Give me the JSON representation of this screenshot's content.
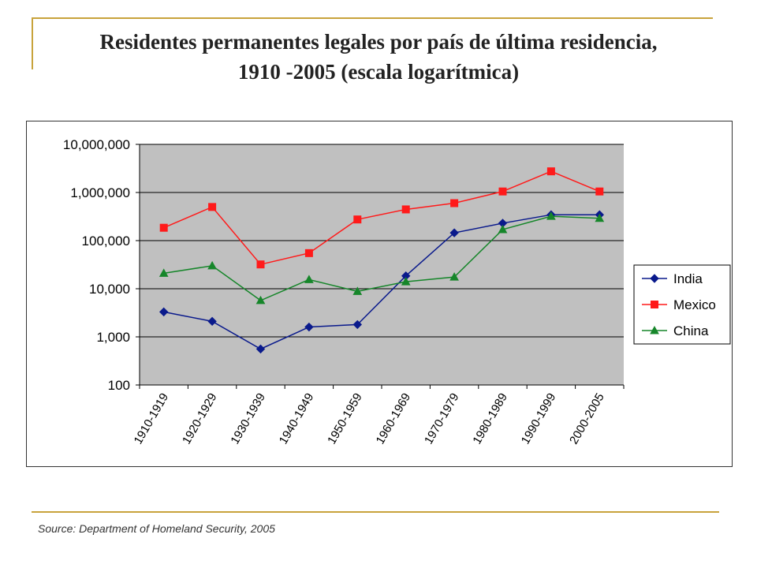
{
  "header": {
    "title_line1": "Residentes permanentes legales por país de última residencia,",
    "title_line2": "1910 -2005 (escala logarítmica)"
  },
  "footer": {
    "source": "Source: Department of Homeland Security, 2005"
  },
  "colors": {
    "accent_rule": "#c8a33c",
    "plot_area": "#c0c0c0",
    "India": "#0a1a8c",
    "Mexico": "#ff1a1a",
    "China": "#16862a"
  },
  "chart_data": {
    "type": "line",
    "title": "",
    "xlabel": "",
    "ylabel": "",
    "yscale": "log",
    "ylim": [
      100,
      10000000
    ],
    "yticks": [
      100,
      1000,
      10000,
      100000,
      1000000,
      10000000
    ],
    "ytick_labels": [
      "100",
      "1,000",
      "10,000",
      "100,000",
      "1,000,000",
      "10,000,000"
    ],
    "grid": true,
    "legend": "right",
    "categories": [
      "1910-1919",
      "1920-1929",
      "1930-1939",
      "1940-1949",
      "1950-1959",
      "1960-1969",
      "1970-1979",
      "1980-1989",
      "1990-1999",
      "2000-2005"
    ],
    "series": [
      {
        "name": "India",
        "marker": "diamond",
        "values": [
          3300,
          2100,
          560,
          1600,
          1800,
          18500,
          145000,
          230000,
          345000,
          345000
        ]
      },
      {
        "name": "Mexico",
        "marker": "square",
        "values": [
          185000,
          500000,
          32000,
          55000,
          275000,
          445000,
          600000,
          1050000,
          2750000,
          1050000
        ]
      },
      {
        "name": "China",
        "marker": "triangle",
        "values": [
          21000,
          30000,
          5700,
          15500,
          8800,
          14000,
          17500,
          170000,
          320000,
          290000
        ]
      }
    ]
  }
}
